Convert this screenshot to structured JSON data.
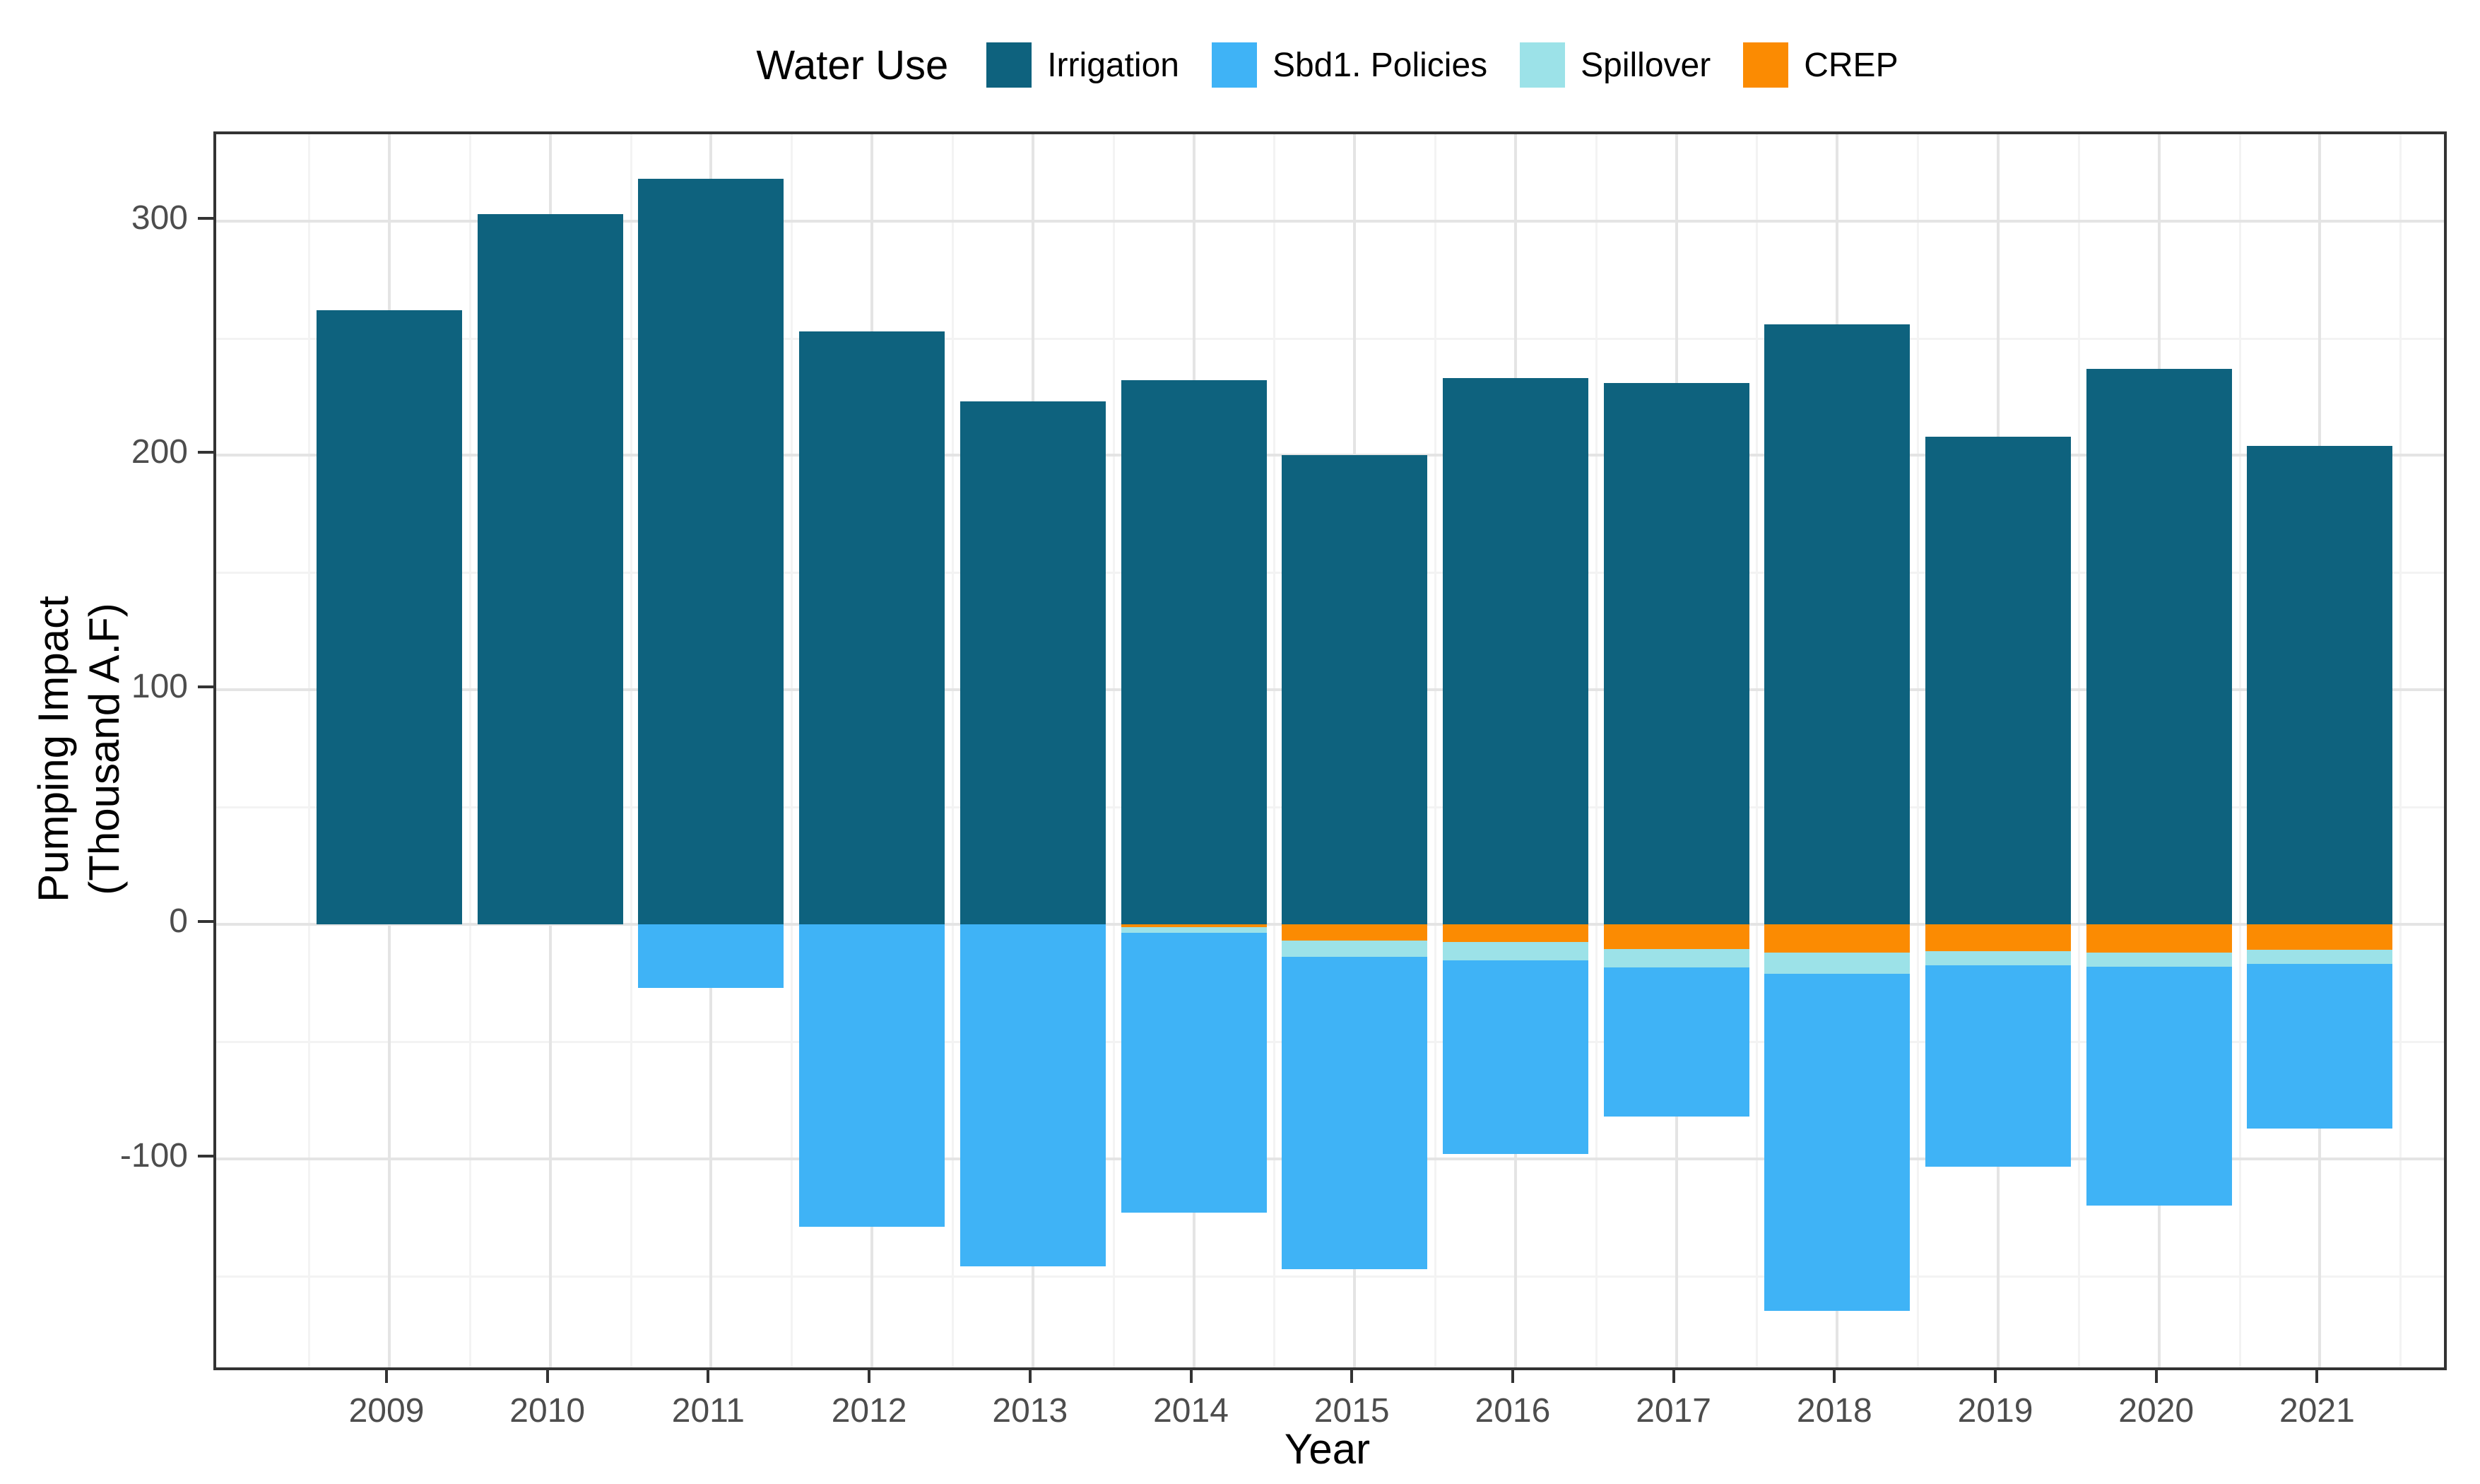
{
  "chart_data": {
    "type": "bar",
    "stacked": true,
    "legend_title": "Water Use",
    "xlabel": "Year",
    "ylabel_line1": "Pumping Impact",
    "ylabel_line2": "(Thousand A.F)",
    "categories": [
      "2009",
      "2010",
      "2011",
      "2012",
      "2013",
      "2014",
      "2015",
      "2016",
      "2017",
      "2018",
      "2019",
      "2020",
      "2021"
    ],
    "series": [
      {
        "name": "Irrigation",
        "color": "#0E627E",
        "values": [
          262,
          303,
          318,
          253,
          223,
          232,
          200,
          233,
          231,
          256,
          208,
          237,
          204
        ]
      },
      {
        "name": "Sbd1. Policies",
        "color": "#3FB3F6",
        "values": [
          0,
          0,
          -27,
          -129,
          -146,
          -119.5,
          -133,
          -82.5,
          -63.5,
          -144,
          -86,
          -102,
          -70
        ]
      },
      {
        "name": "Spillover",
        "color": "#9CE2E8",
        "values": [
          0,
          0,
          0,
          0,
          0,
          -2.3,
          -7,
          -8,
          -8,
          -9,
          -6,
          -6,
          -6
        ]
      },
      {
        "name": "CREP",
        "color": "#FB8B02",
        "values": [
          0,
          0,
          0,
          0,
          0,
          -1.2,
          -7,
          -7.5,
          -10.5,
          -12,
          -11.5,
          -12,
          -11
        ]
      }
    ],
    "stack_order": [
      "Irrigation",
      "CREP",
      "Spillover",
      "Sbd1. Policies"
    ],
    "y_ticks": [
      300,
      200,
      100,
      0,
      -100
    ],
    "y_minor_ticks": [
      250,
      150,
      50,
      -50,
      -150
    ],
    "ylim": [
      -189,
      337
    ],
    "legend_position": "top",
    "grid": true,
    "axis_text_color": "#4d4d4d",
    "panel_border_color": "#333333"
  }
}
